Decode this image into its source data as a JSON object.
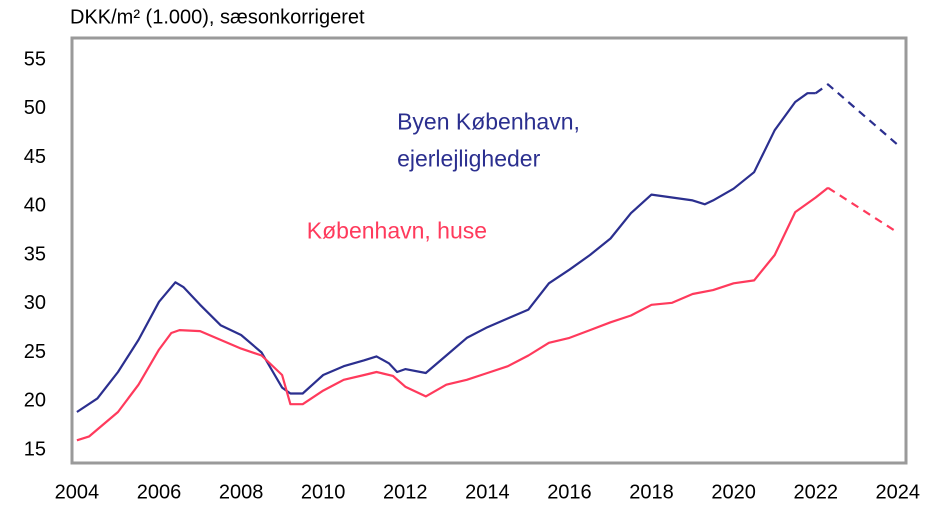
{
  "chart_data": {
    "type": "line",
    "title": "DKK/m² (1.000), sæsonkorrigeret",
    "annotations": [
      {
        "lines": [
          "Byen København,",
          "ejerlejligheder"
        ],
        "color": "#2b2f8f",
        "x": 2011.8,
        "y": 48.5
      },
      {
        "lines": [
          "København, huse"
        ],
        "color": "#ff3a5c",
        "x": 2009.6,
        "y": 37.3
      }
    ],
    "xlim": [
      2003.88,
      2024.2
    ],
    "ylim": [
      13.67,
      57.26
    ],
    "xticks": [
      2004,
      2006,
      2008,
      2010,
      2012,
      2014,
      2016,
      2018,
      2020,
      2022,
      2024
    ],
    "yticks": [
      15,
      20,
      25,
      30,
      35,
      40,
      45,
      50,
      55
    ],
    "series": [
      {
        "color": "#2b2f8f",
        "dashed": false,
        "x": [
          2004.0,
          2004.5,
          2005.0,
          2005.5,
          2006.0,
          2006.4,
          2006.6,
          2007.0,
          2007.5,
          2008.0,
          2008.5,
          2009.0,
          2009.2,
          2009.5,
          2010.0,
          2010.5,
          2011.0,
          2011.3,
          2011.6,
          2011.8,
          2012.0,
          2012.5,
          2013.0,
          2013.5,
          2014.0,
          2014.5,
          2015.0,
          2015.5,
          2016.0,
          2016.5,
          2017.0,
          2017.5,
          2018.0,
          2018.5,
          2019.0,
          2019.3,
          2019.5,
          2020.0,
          2020.5,
          2021.0,
          2021.5,
          2021.8,
          2022.0
        ],
        "values": [
          18.9,
          20.3,
          23,
          26.3,
          30.2,
          32.2,
          31.7,
          29.9,
          27.8,
          26.8,
          25,
          21.4,
          20.8,
          20.8,
          22.7,
          23.6,
          24.2,
          24.6,
          23.9,
          23,
          23.3,
          22.9,
          24.7,
          26.5,
          27.6,
          28.5,
          29.4,
          32.1,
          33.5,
          35,
          36.7,
          39.3,
          41.2,
          40.9,
          40.6,
          40.2,
          40.6,
          41.8,
          43.5,
          47.8,
          50.7,
          51.6,
          51.6
        ]
      },
      {
        "color": "#2b2f8f",
        "dashed": true,
        "x": [
          2022.0,
          2022.3,
          2024.0
        ],
        "values": [
          51.6,
          52.5,
          46.3
        ]
      },
      {
        "color": "#ff3a5c",
        "dashed": false,
        "x": [
          2004.0,
          2004.3,
          2005.0,
          2005.5,
          2006.0,
          2006.3,
          2006.5,
          2007.0,
          2007.5,
          2008.0,
          2008.5,
          2009.0,
          2009.2,
          2009.5,
          2010.0,
          2010.5,
          2011.0,
          2011.3,
          2011.7,
          2012.0,
          2012.5,
          2013.0,
          2013.5,
          2014.0,
          2014.5,
          2015.0,
          2015.5,
          2016.0,
          2016.5,
          2017.0,
          2017.5,
          2018.0,
          2018.5,
          2019.0,
          2019.5,
          2020.0,
          2020.5,
          2021.0,
          2021.5,
          2022.0,
          2022.3
        ],
        "values": [
          16,
          16.4,
          18.9,
          21.7,
          25.3,
          27,
          27.3,
          27.2,
          26.3,
          25.4,
          24.7,
          22.7,
          19.7,
          19.7,
          21.1,
          22.2,
          22.7,
          23,
          22.6,
          21.5,
          20.5,
          21.7,
          22.2,
          22.9,
          23.6,
          24.7,
          26,
          26.5,
          27.3,
          28.1,
          28.8,
          29.9,
          30.1,
          31,
          31.4,
          32.1,
          32.4,
          35,
          39.4,
          40.9,
          41.9
        ]
      },
      {
        "color": "#ff3a5c",
        "dashed": true,
        "x": [
          2022.3,
          2024.0
        ],
        "values": [
          41.9,
          37.3
        ]
      }
    ]
  }
}
